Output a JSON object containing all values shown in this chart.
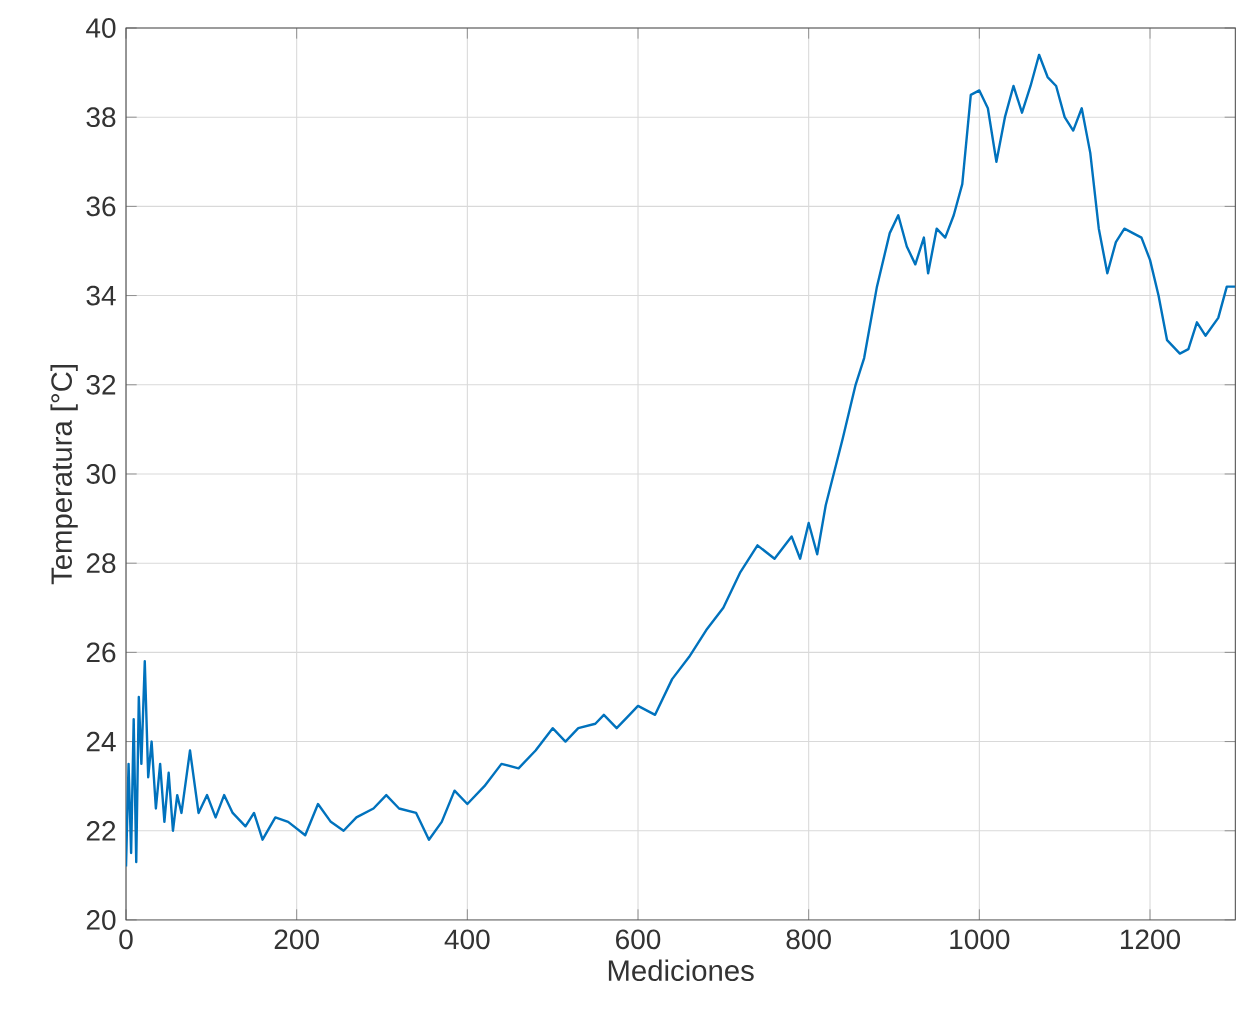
{
  "chart_data": {
    "type": "line",
    "xlabel": "Mediciones",
    "ylabel": "Temperatura [°C]",
    "xlim": [
      0,
      1300
    ],
    "ylim": [
      20,
      40
    ],
    "xticks": [
      0,
      200,
      400,
      600,
      800,
      1000,
      1200
    ],
    "yticks": [
      20,
      22,
      24,
      26,
      28,
      30,
      32,
      34,
      36,
      38,
      40
    ],
    "grid": true,
    "series": [
      {
        "color": "#0072bd",
        "x": [
          0,
          3,
          6,
          9,
          12,
          15,
          18,
          22,
          26,
          30,
          35,
          40,
          45,
          50,
          55,
          60,
          65,
          75,
          85,
          95,
          105,
          115,
          125,
          140,
          150,
          160,
          175,
          190,
          210,
          225,
          240,
          255,
          270,
          290,
          305,
          320,
          340,
          355,
          370,
          385,
          400,
          420,
          440,
          460,
          480,
          500,
          515,
          530,
          550,
          560,
          575,
          590,
          600,
          620,
          640,
          660,
          680,
          700,
          720,
          740,
          760,
          780,
          790,
          800,
          810,
          820,
          840,
          855,
          865,
          880,
          895,
          905,
          915,
          925,
          935,
          940,
          950,
          960,
          970,
          980,
          990,
          1000,
          1010,
          1020,
          1030,
          1040,
          1050,
          1060,
          1070,
          1080,
          1090,
          1100,
          1110,
          1120,
          1130,
          1140,
          1150,
          1160,
          1170,
          1180,
          1190,
          1200,
          1210,
          1220,
          1235,
          1245,
          1255,
          1265,
          1280,
          1290,
          1300
        ],
        "values": [
          21.2,
          23.5,
          21.5,
          24.5,
          21.3,
          25,
          23.5,
          25.8,
          23.2,
          24,
          22.5,
          23.5,
          22.2,
          23.3,
          22.0,
          22.8,
          22.4,
          23.8,
          22.4,
          22.8,
          22.3,
          22.8,
          22.4,
          22.1,
          22.4,
          21.8,
          22.3,
          22.2,
          21.9,
          22.6,
          22.2,
          22.0,
          22.3,
          22.5,
          22.8,
          22.5,
          22.4,
          21.8,
          22.2,
          22.9,
          22.6,
          23.0,
          23.5,
          23.4,
          23.8,
          24.3,
          24.0,
          24.3,
          24.4,
          24.6,
          24.3,
          24.6,
          24.8,
          24.6,
          25.4,
          25.9,
          26.5,
          27.0,
          27.8,
          28.4,
          28.1,
          28.6,
          28.1,
          28.9,
          28.2,
          29.3,
          30.8,
          32.0,
          32.6,
          34.2,
          35.4,
          35.8,
          35.1,
          34.7,
          35.3,
          34.5,
          35.5,
          35.3,
          35.8,
          36.5,
          38.5,
          38.6,
          38.2,
          37.0,
          38.0,
          38.7,
          38.1,
          38.7,
          39.4,
          38.9,
          38.7,
          38.0,
          37.7,
          38.2,
          37.2,
          35.5,
          34.5,
          35.2,
          35.5,
          35.4,
          35.3,
          34.8,
          34.0,
          33.0,
          32.7,
          32.8,
          33.4,
          33.1,
          33.5,
          34.2,
          34.2
        ]
      }
    ]
  }
}
